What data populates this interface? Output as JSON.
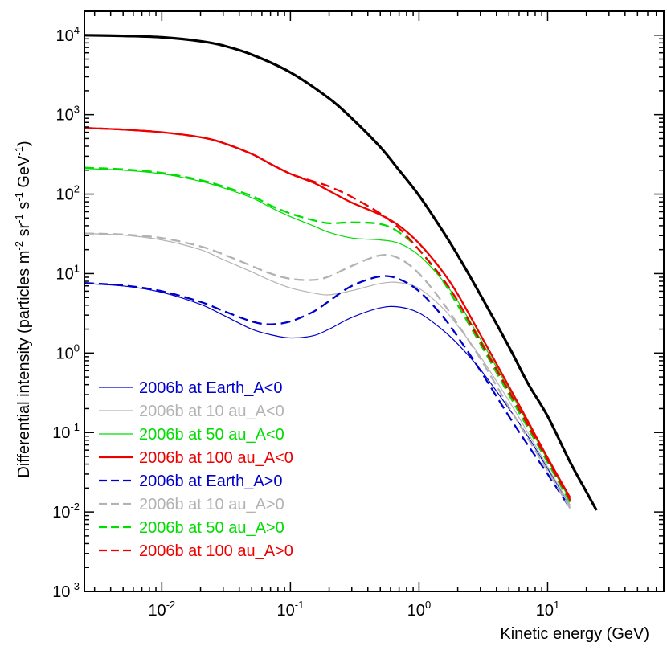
{
  "chart_data": {
    "type": "line",
    "title": "",
    "xlabel": "Kinetic energy (GeV)",
    "ylabel": {
      "prefix": "Differential intensity (particles m",
      "sup_m": "-2",
      "sr": " sr",
      "sup_sr": "-1",
      "s": " s",
      "sup_s": "-1",
      "gev": " GeV",
      "sup_gev": "-1",
      "suffix": ")"
    },
    "x_scale": "log",
    "y_scale": "log",
    "xlim": [
      0.0025,
      80
    ],
    "ylim": [
      0.001,
      20000
    ],
    "x_ticks": [
      {
        "base": "10",
        "exp": "-2",
        "value": 0.01
      },
      {
        "base": "10",
        "exp": "-1",
        "value": 0.1
      },
      {
        "base": "10",
        "exp": "0",
        "value": 1
      },
      {
        "base": "10",
        "exp": "1",
        "value": 10
      }
    ],
    "y_ticks": [
      {
        "base": "10",
        "exp": "-3",
        "value": 0.001
      },
      {
        "base": "10",
        "exp": "-2",
        "value": 0.01
      },
      {
        "base": "10",
        "exp": "-1",
        "value": 0.1
      },
      {
        "base": "10",
        "exp": "0",
        "value": 1
      },
      {
        "base": "10",
        "exp": "1",
        "value": 10
      },
      {
        "base": "10",
        "exp": "2",
        "value": 100
      },
      {
        "base": "10",
        "exp": "3",
        "value": 1000
      },
      {
        "base": "10",
        "exp": "4",
        "value": 10000
      }
    ],
    "grid": false,
    "legend_position": "bottom-left",
    "series": [
      {
        "name": "",
        "color": "#000000",
        "dash": "solid",
        "weight": "bold",
        "in_legend": false,
        "points": [
          [
            0.0025,
            10000
          ],
          [
            0.005,
            9800
          ],
          [
            0.01,
            9400
          ],
          [
            0.02,
            8400
          ],
          [
            0.03,
            7400
          ],
          [
            0.05,
            5700
          ],
          [
            0.1,
            3400
          ],
          [
            0.2,
            1600
          ],
          [
            0.3,
            900
          ],
          [
            0.5,
            390
          ],
          [
            0.7,
            200
          ],
          [
            1,
            96
          ],
          [
            1.5,
            36
          ],
          [
            2,
            17
          ],
          [
            3,
            5.4
          ],
          [
            5,
            1.2
          ],
          [
            7,
            0.42
          ],
          [
            10,
            0.16
          ],
          [
            15,
            0.042
          ],
          [
            20,
            0.018
          ],
          [
            24,
            0.0105
          ]
        ]
      },
      {
        "name": "2006b at Earth_A<0",
        "color": "#0000cc",
        "dash": "solid",
        "weight": "thin",
        "in_legend": true,
        "points": [
          [
            0.0025,
            7.5
          ],
          [
            0.005,
            7.0
          ],
          [
            0.01,
            5.8
          ],
          [
            0.02,
            4.1
          ],
          [
            0.03,
            3.0
          ],
          [
            0.05,
            2.0
          ],
          [
            0.07,
            1.7
          ],
          [
            0.1,
            1.55
          ],
          [
            0.15,
            1.65
          ],
          [
            0.2,
            2.0
          ],
          [
            0.3,
            2.8
          ],
          [
            0.5,
            3.7
          ],
          [
            0.7,
            3.8
          ],
          [
            1,
            3.2
          ],
          [
            1.5,
            2.0
          ],
          [
            2,
            1.3
          ],
          [
            3,
            0.62
          ],
          [
            5,
            0.2
          ],
          [
            7,
            0.09
          ],
          [
            10,
            0.035
          ],
          [
            15,
            0.012
          ]
        ]
      },
      {
        "name": "2006b at 10 au_A<0",
        "color": "#b3b3b3",
        "dash": "solid",
        "weight": "thin",
        "in_legend": true,
        "points": [
          [
            0.0025,
            32
          ],
          [
            0.005,
            30.5
          ],
          [
            0.01,
            26.5
          ],
          [
            0.02,
            20
          ],
          [
            0.03,
            15
          ],
          [
            0.05,
            10.5
          ],
          [
            0.07,
            8.2
          ],
          [
            0.1,
            6.6
          ],
          [
            0.15,
            5.7
          ],
          [
            0.2,
            5.4
          ],
          [
            0.3,
            6.1
          ],
          [
            0.5,
            7.5
          ],
          [
            0.7,
            7.7
          ],
          [
            1,
            6.5
          ],
          [
            1.5,
            3.8
          ],
          [
            2,
            2.2
          ],
          [
            3,
            0.9
          ],
          [
            5,
            0.25
          ],
          [
            7,
            0.1
          ],
          [
            10,
            0.037
          ],
          [
            15,
            0.012
          ]
        ]
      },
      {
        "name": "2006b at 50 au_A<0",
        "color": "#00dd00",
        "dash": "solid",
        "weight": "thin",
        "in_legend": true,
        "points": [
          [
            0.0025,
            210
          ],
          [
            0.005,
            200
          ],
          [
            0.01,
            180
          ],
          [
            0.02,
            145
          ],
          [
            0.03,
            120
          ],
          [
            0.05,
            90
          ],
          [
            0.07,
            68
          ],
          [
            0.1,
            52
          ],
          [
            0.15,
            40
          ],
          [
            0.2,
            33
          ],
          [
            0.3,
            28
          ],
          [
            0.5,
            26.5
          ],
          [
            0.7,
            24
          ],
          [
            1,
            17
          ],
          [
            1.5,
            8.5
          ],
          [
            2,
            4.5
          ],
          [
            3,
            1.5
          ],
          [
            5,
            0.35
          ],
          [
            7,
            0.13
          ],
          [
            10,
            0.045
          ],
          [
            15,
            0.014
          ]
        ]
      },
      {
        "name": "2006b at 100 au_A<0",
        "color": "#ee0000",
        "dash": "solid",
        "weight": "medium",
        "in_legend": true,
        "points": [
          [
            0.0025,
            680
          ],
          [
            0.005,
            650
          ],
          [
            0.01,
            600
          ],
          [
            0.02,
            520
          ],
          [
            0.03,
            440
          ],
          [
            0.05,
            320
          ],
          [
            0.07,
            240
          ],
          [
            0.1,
            180
          ],
          [
            0.15,
            140
          ],
          [
            0.2,
            110
          ],
          [
            0.3,
            78
          ],
          [
            0.5,
            55
          ],
          [
            0.7,
            40
          ],
          [
            1,
            24
          ],
          [
            1.5,
            11
          ],
          [
            2,
            5.5
          ],
          [
            3,
            1.7
          ],
          [
            5,
            0.38
          ],
          [
            7,
            0.14
          ],
          [
            10,
            0.048
          ],
          [
            15,
            0.015
          ]
        ]
      },
      {
        "name": "2006b at Earth_A>0",
        "color": "#0000cc",
        "dash": "dashed",
        "weight": "medium",
        "in_legend": true,
        "points": [
          [
            0.0025,
            7.6
          ],
          [
            0.005,
            7.1
          ],
          [
            0.01,
            6.0
          ],
          [
            0.02,
            4.4
          ],
          [
            0.03,
            3.4
          ],
          [
            0.05,
            2.5
          ],
          [
            0.07,
            2.3
          ],
          [
            0.1,
            2.5
          ],
          [
            0.15,
            3.3
          ],
          [
            0.2,
            4.5
          ],
          [
            0.3,
            7.0
          ],
          [
            0.5,
            9.2
          ],
          [
            0.7,
            8.5
          ],
          [
            1,
            6.0
          ],
          [
            1.5,
            3.0
          ],
          [
            2,
            1.6
          ],
          [
            3,
            0.6
          ],
          [
            5,
            0.16
          ],
          [
            7,
            0.07
          ],
          [
            10,
            0.03
          ],
          [
            15,
            0.011
          ]
        ]
      },
      {
        "name": "2006b at 10 au_A>0",
        "color": "#b3b3b3",
        "dash": "dashed",
        "weight": "medium",
        "in_legend": true,
        "points": [
          [
            0.0025,
            32
          ],
          [
            0.005,
            31
          ],
          [
            0.01,
            28
          ],
          [
            0.02,
            22
          ],
          [
            0.03,
            17.5
          ],
          [
            0.05,
            12.5
          ],
          [
            0.07,
            10
          ],
          [
            0.1,
            8.6
          ],
          [
            0.15,
            8.3
          ],
          [
            0.2,
            9.2
          ],
          [
            0.3,
            12.5
          ],
          [
            0.5,
            17
          ],
          [
            0.7,
            15.5
          ],
          [
            1,
            10
          ],
          [
            1.5,
            4.5
          ],
          [
            2,
            2.3
          ],
          [
            3,
            0.85
          ],
          [
            5,
            0.21
          ],
          [
            7,
            0.085
          ],
          [
            10,
            0.033
          ],
          [
            15,
            0.011
          ]
        ]
      },
      {
        "name": "2006b at 50 au_A>0",
        "color": "#00dd00",
        "dash": "dashed",
        "weight": "medium",
        "in_legend": true,
        "points": [
          [
            0.0025,
            215
          ],
          [
            0.005,
            205
          ],
          [
            0.01,
            185
          ],
          [
            0.02,
            150
          ],
          [
            0.03,
            125
          ],
          [
            0.05,
            95
          ],
          [
            0.07,
            72
          ],
          [
            0.1,
            57
          ],
          [
            0.15,
            47
          ],
          [
            0.2,
            43
          ],
          [
            0.3,
            44
          ],
          [
            0.5,
            42
          ],
          [
            0.7,
            33
          ],
          [
            1,
            20
          ],
          [
            1.5,
            8.5
          ],
          [
            2,
            4
          ],
          [
            3,
            1.3
          ],
          [
            5,
            0.3
          ],
          [
            7,
            0.115
          ],
          [
            10,
            0.042
          ],
          [
            15,
            0.013
          ]
        ]
      },
      {
        "name": "2006b at 100 au_A>0",
        "color": "#ee0000",
        "dash": "dashed",
        "weight": "medium",
        "in_legend": true,
        "points": [
          [
            0.0025,
            680
          ],
          [
            0.005,
            650
          ],
          [
            0.01,
            600
          ],
          [
            0.02,
            520
          ],
          [
            0.03,
            440
          ],
          [
            0.05,
            320
          ],
          [
            0.07,
            240
          ],
          [
            0.1,
            180
          ],
          [
            0.15,
            145
          ],
          [
            0.2,
            125
          ],
          [
            0.3,
            92
          ],
          [
            0.5,
            57
          ],
          [
            0.7,
            37
          ],
          [
            1,
            20
          ],
          [
            1.5,
            9
          ],
          [
            2,
            4.5
          ],
          [
            3,
            1.4
          ],
          [
            5,
            0.33
          ],
          [
            7,
            0.125
          ],
          [
            10,
            0.045
          ],
          [
            15,
            0.014
          ]
        ]
      }
    ]
  }
}
